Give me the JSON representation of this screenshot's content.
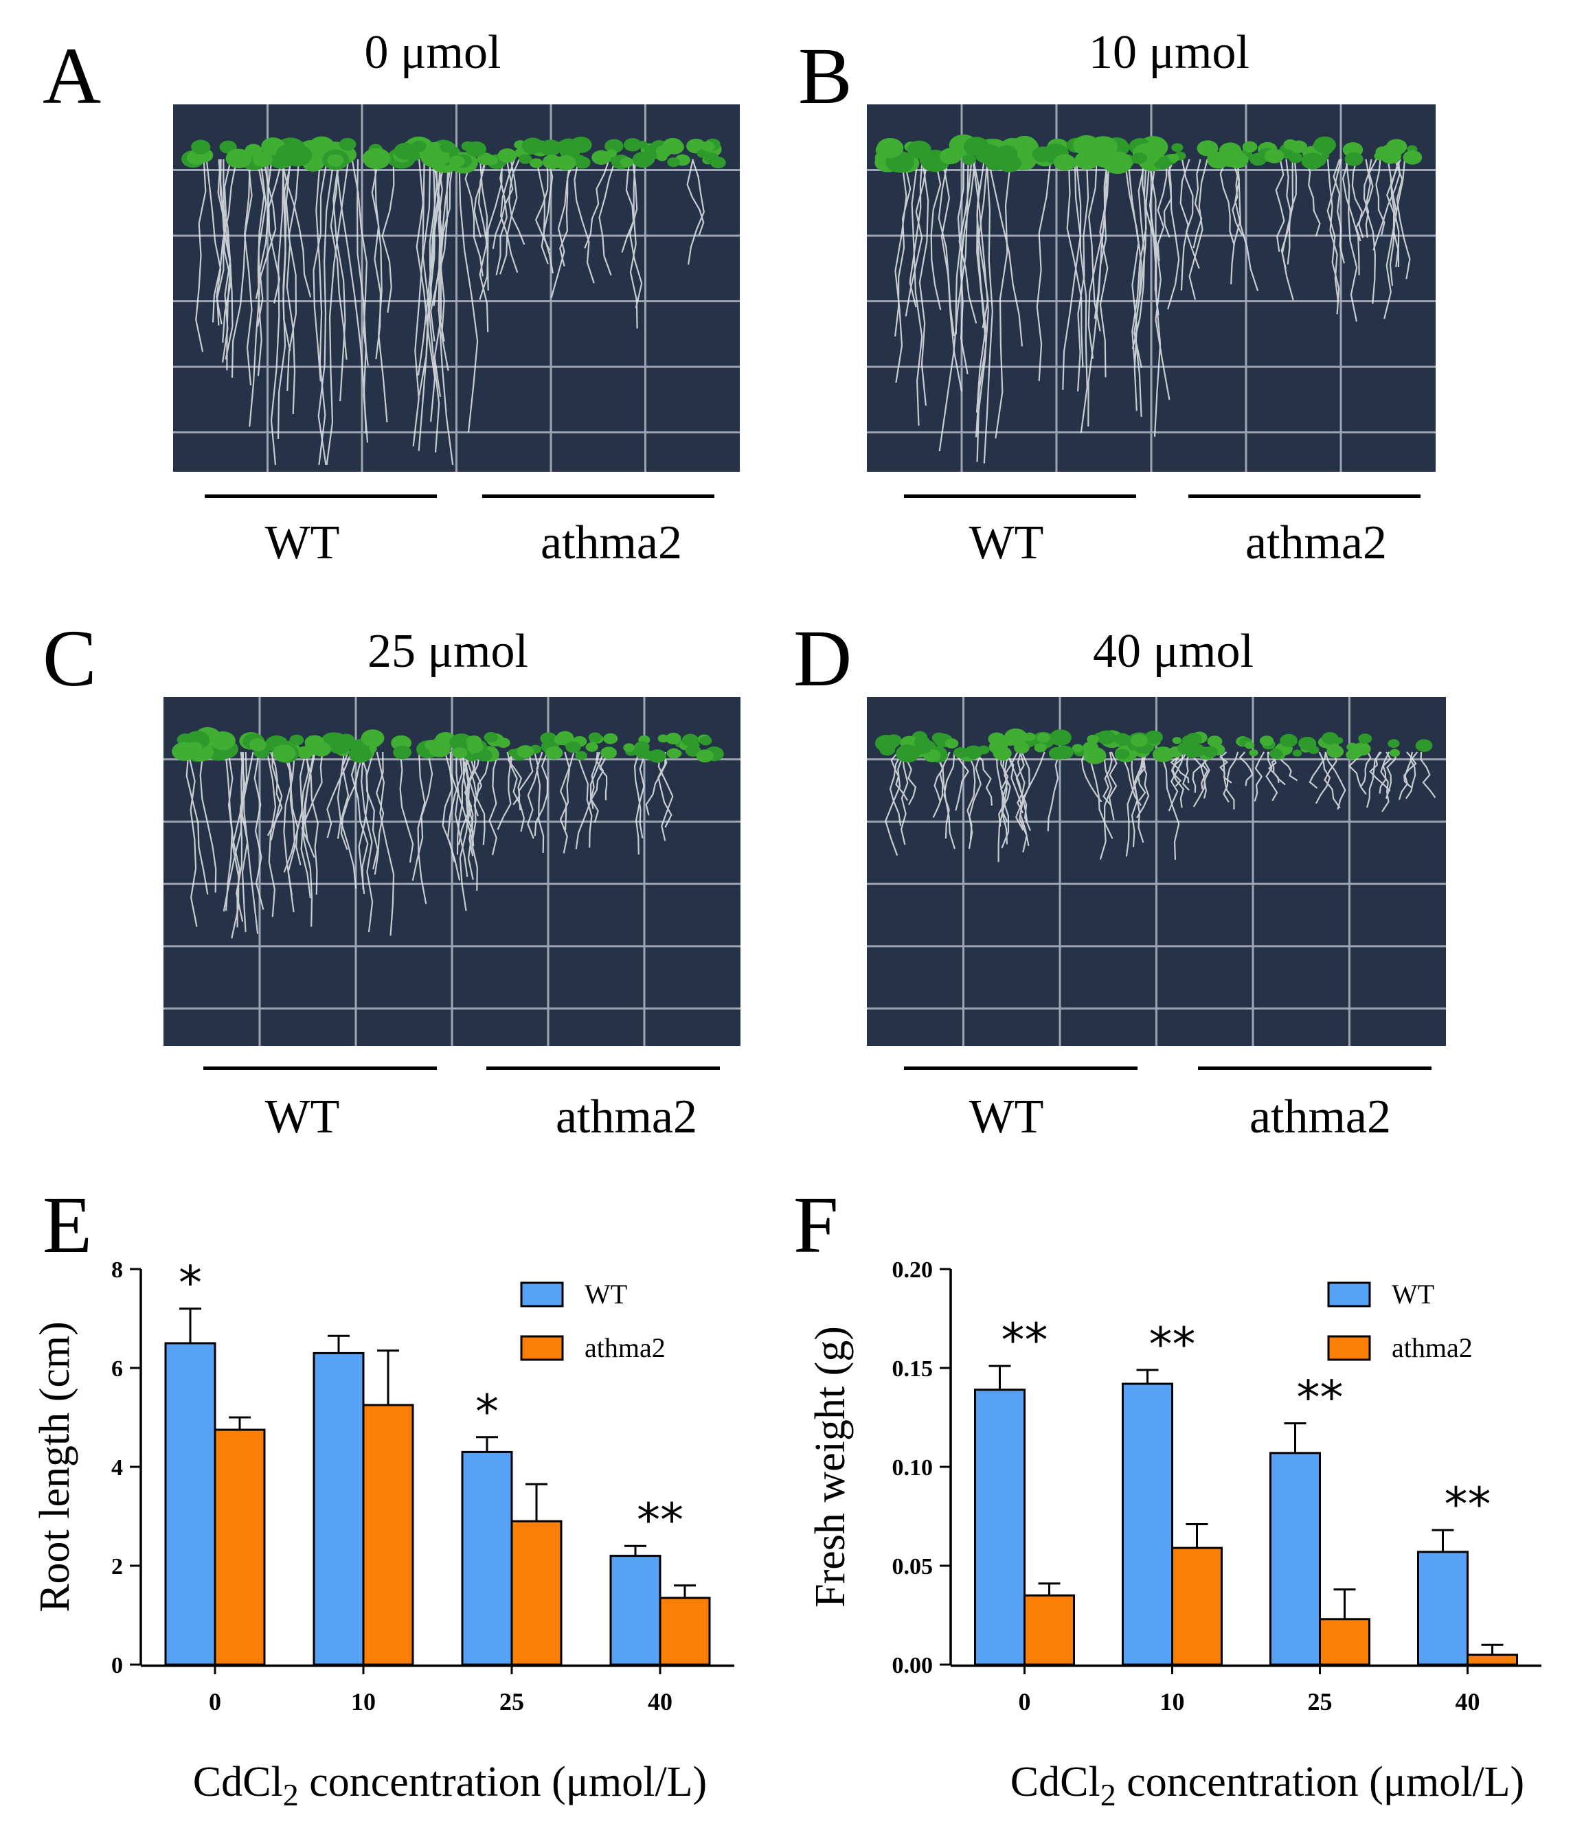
{
  "panels": [
    {
      "letter": "A",
      "title": "0 μmol"
    },
    {
      "letter": "B",
      "title": "10 μmol"
    },
    {
      "letter": "C",
      "title": "25 μmol"
    },
    {
      "letter": "D",
      "title": "40 μmol"
    }
  ],
  "group_labels": {
    "wt": "WT",
    "mutant": "athma2"
  },
  "chart_letters": {
    "e": "E",
    "f": "F"
  },
  "x_axis_title": {
    "prefix": "CdCl",
    "subscript": "2",
    "suffix": " concentration (μmol/L)"
  },
  "colors": {
    "wt": "#55a2f7",
    "athma2": "#f97f07",
    "plate": "#263247",
    "leaf": "#2e9a2a"
  },
  "chart_data": [
    {
      "type": "bar",
      "panel": "E",
      "ylabel": "Root length (cm)",
      "categories": [
        "0",
        "10",
        "25",
        "40"
      ],
      "ylim": [
        0,
        8
      ],
      "yticks": [
        "0",
        "2",
        "4",
        "6",
        "8"
      ],
      "series": [
        {
          "name": "WT",
          "values": [
            6.5,
            6.3,
            4.3,
            2.2
          ],
          "errors": [
            0.7,
            0.35,
            0.3,
            0.2
          ]
        },
        {
          "name": "athma2",
          "values": [
            4.75,
            5.25,
            2.9,
            1.35
          ],
          "errors": [
            0.25,
            1.1,
            0.75,
            0.25
          ]
        }
      ],
      "significance": [
        "*",
        "",
        "*",
        "**"
      ],
      "legend": "top-right"
    },
    {
      "type": "bar",
      "panel": "F",
      "ylabel": "Fresh weight (g)",
      "categories": [
        "0",
        "10",
        "25",
        "40"
      ],
      "ylim": [
        0,
        0.2
      ],
      "yticks": [
        "0.00",
        "0.05",
        "0.10",
        "0.15",
        "0.20"
      ],
      "series": [
        {
          "name": "WT",
          "values": [
            0.139,
            0.142,
            0.107,
            0.057
          ],
          "errors": [
            0.012,
            0.007,
            0.015,
            0.011
          ]
        },
        {
          "name": "athma2",
          "values": [
            0.035,
            0.059,
            0.023,
            0.005
          ],
          "errors": [
            0.006,
            0.012,
            0.015,
            0.005
          ]
        }
      ],
      "significance": [
        "**",
        "**",
        "**",
        "**"
      ],
      "legend": "top-right"
    }
  ]
}
